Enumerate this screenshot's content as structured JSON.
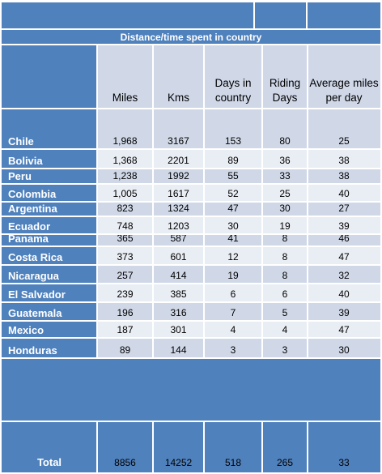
{
  "title": "Distance/time spent in country",
  "columns": [
    "",
    "Miles",
    "Kms",
    "Days in country",
    "Riding Days",
    "Average miles per day"
  ],
  "rows": [
    {
      "name": "Chile",
      "values": [
        "1,968",
        "3167",
        "153",
        "80",
        "25"
      ]
    },
    {
      "name": "Bolivia",
      "values": [
        "1,368",
        "2201",
        "89",
        "36",
        "38"
      ]
    },
    {
      "name": "Peru",
      "values": [
        "1,238",
        "1992",
        "55",
        "33",
        "38"
      ]
    },
    {
      "name": "Colombia",
      "values": [
        "1,005",
        "1617",
        "52",
        "25",
        "40"
      ]
    },
    {
      "name": "Argentina",
      "values": [
        "823",
        "1324",
        "47",
        "30",
        "27"
      ]
    },
    {
      "name": "Ecuador",
      "values": [
        "748",
        "1203",
        "30",
        "19",
        "39"
      ]
    },
    {
      "name": "Panama",
      "values": [
        "365",
        "587",
        "41",
        "8",
        "46"
      ]
    },
    {
      "name": "Costa Rica",
      "values": [
        "373",
        "601",
        "12",
        "8",
        "47"
      ]
    },
    {
      "name": "Nicaragua",
      "values": [
        "257",
        "414",
        "19",
        "8",
        "32"
      ]
    },
    {
      "name": "El Salvador",
      "values": [
        "239",
        "385",
        "6",
        "6",
        "40"
      ]
    },
    {
      "name": "Guatemala",
      "values": [
        "196",
        "316",
        "7",
        "5",
        "39"
      ]
    },
    {
      "name": "Mexico",
      "values": [
        "187",
        "301",
        "4",
        "4",
        "47"
      ]
    },
    {
      "name": "Honduras",
      "values": [
        "89",
        "144",
        "3",
        "3",
        "30"
      ]
    }
  ],
  "total": {
    "name": "Total",
    "values": [
      "8856",
      "14252",
      "518",
      "265",
      "33"
    ]
  },
  "colors": {
    "header_blue": "#4f81bd",
    "band_dark": "#d0d8e8",
    "band_light": "#e9edf4",
    "grid_line": "#ffffff"
  }
}
